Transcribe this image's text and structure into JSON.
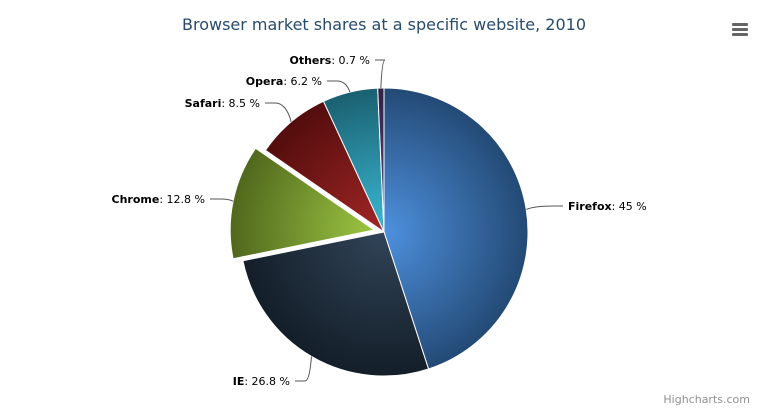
{
  "chart_data": {
    "type": "pie",
    "title": "Browser market shares at a specific website, 2010",
    "value_suffix": " %",
    "sliced": "Chrome",
    "legend": "none",
    "slices": [
      {
        "name": "Firefox",
        "value": 45,
        "label": "45 %",
        "color": "#2f7ed8"
      },
      {
        "name": "IE",
        "value": 26.8,
        "label": "26.8 %",
        "color": "#0d233a"
      },
      {
        "name": "Chrome",
        "value": 12.8,
        "label": "12.8 %",
        "color": "#8bbc21"
      },
      {
        "name": "Safari",
        "value": 8.5,
        "label": "8.5 %",
        "color": "#910000"
      },
      {
        "name": "Opera",
        "value": 6.2,
        "label": "6.2 %",
        "color": "#1aadce"
      },
      {
        "name": "Others",
        "value": 0.7,
        "label": "0.7 %",
        "color": "#492970"
      }
    ]
  },
  "menu": {
    "icon": "hamburger-menu-icon"
  },
  "credits": "Highcharts.com"
}
